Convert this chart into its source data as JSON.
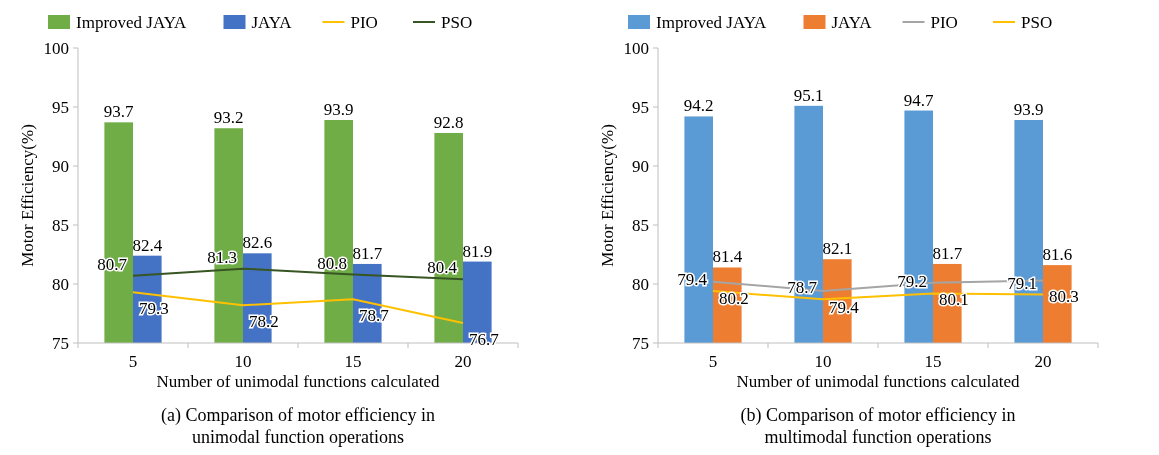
{
  "chart_data": [
    {
      "type": "bar",
      "title": "(a) Comparison of motor efficiency in unimodal function operations",
      "xlabel": "Number of unimodal functions  calculated",
      "ylabel": "Motor Efficiency(%)",
      "categories": [
        "5",
        "10",
        "15",
        "20"
      ],
      "series": [
        {
          "name": "Improved JAYA",
          "color": "#70ad47",
          "values": [
            93.7,
            93.2,
            93.9,
            92.8
          ]
        },
        {
          "name": "JAYA",
          "color": "#4472c4",
          "values": [
            82.4,
            82.6,
            81.7,
            81.9
          ]
        },
        {
          "name": "PIO",
          "type": "line",
          "color": "#ffc000",
          "values": [
            79.3,
            78.2,
            78.7,
            76.7
          ]
        },
        {
          "name": "PSO",
          "type": "line",
          "color": "#375623",
          "values": [
            80.7,
            81.3,
            80.8,
            80.4
          ]
        }
      ],
      "ylim": [
        75,
        100
      ],
      "yticks": [
        75,
        80,
        85,
        90,
        95,
        100
      ],
      "data_labels": true,
      "legend": "top",
      "grid": false
    },
    {
      "type": "bar",
      "title": "(b) Comparison of motor efficiency in multimodal function operations",
      "xlabel": "Number of unimodal functions  calculated",
      "ylabel": "Motor Efficiency(%)",
      "categories": [
        "5",
        "10",
        "15",
        "20"
      ],
      "series": [
        {
          "name": "Improved JAYA",
          "color": "#5b9bd5",
          "values": [
            94.2,
            95.1,
            94.7,
            93.9
          ]
        },
        {
          "name": "JAYA",
          "color": "#ed7d31",
          "values": [
            81.4,
            82.1,
            81.7,
            81.6
          ]
        },
        {
          "name": "PIO",
          "type": "line",
          "color": "#a5a5a5",
          "values": [
            80.2,
            79.4,
            80.1,
            80.3
          ]
        },
        {
          "name": "PSO",
          "type": "line",
          "color": "#ffc000",
          "values": [
            79.4,
            78.7,
            79.2,
            79.1
          ]
        }
      ],
      "ylim": [
        75,
        100
      ],
      "yticks": [
        75,
        80,
        85,
        90,
        95,
        100
      ],
      "data_labels": true,
      "legend": "top",
      "grid": false
    }
  ]
}
